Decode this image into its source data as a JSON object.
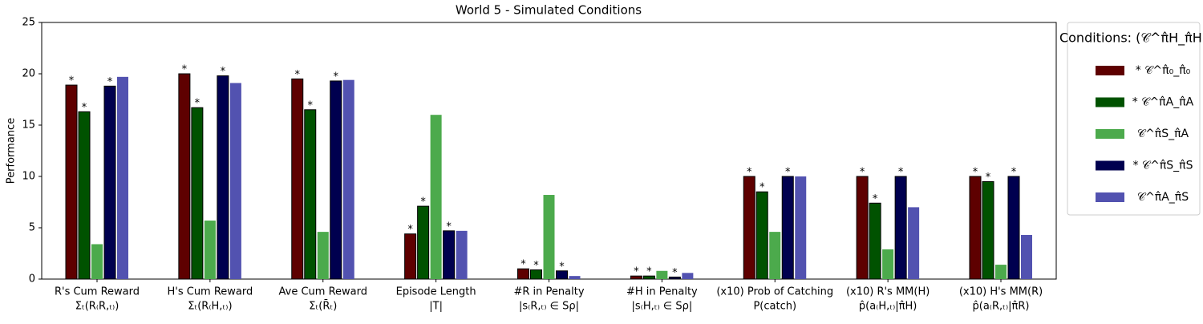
{
  "chart_data": {
    "type": "bar",
    "title": "World 5 - Simulated Conditions",
    "ylabel": "Performance",
    "categories": [
      "R's Cum Reward",
      "H's Cum Reward",
      "Ave Cum Reward",
      "Episode Length",
      "#R in Penalty",
      "#H in Penalty",
      "(x10) Prob of Catching",
      "(x10) R's MM(H)",
      "(x10) H's MM(R)"
    ],
    "category_formulas": [
      "Σₜ(R₍R,ₜ₎)",
      "Σₜ(R₍H,ₜ₎)",
      "Σₜ(R̄ₜ)",
      "|T|",
      "|s₍R,ₜ₎ ∈ Sρ|",
      "|s₍H,ₜ₎ ∈ Sρ|",
      "P(catch)",
      "p̂(a₍H,ₜ₎|π̂H)",
      "p̂(a₍R,ₜ₎|π̂R)"
    ],
    "series": [
      {
        "name": "* 𝒞^π̂₀_π̂₀",
        "star": "*",
        "color": "#5e0000",
        "values": [
          18.9,
          20.0,
          19.5,
          4.4,
          1.0,
          0.3,
          10.0,
          10.0,
          10.0
        ]
      },
      {
        "name": "* 𝒞^π̂A_π̂A",
        "star": "*",
        "color": "#005200",
        "values": [
          16.3,
          16.7,
          16.5,
          7.1,
          0.9,
          0.3,
          8.5,
          7.4,
          9.5
        ]
      },
      {
        "name": "𝒞^π̂S_π̂A",
        "color": "#4caa4c",
        "values": [
          3.4,
          5.7,
          4.6,
          16.0,
          8.2,
          0.8,
          4.6,
          2.9,
          1.4
        ]
      },
      {
        "name": "* 𝒞^π̂S_π̂S",
        "star": "*",
        "color": "#00004f",
        "values": [
          18.8,
          19.8,
          19.3,
          4.7,
          0.8,
          0.2,
          10.0,
          10.0,
          10.0
        ]
      },
      {
        "name": "𝒞^π̂A_π̂S",
        "color": "#5252b0",
        "values": [
          19.7,
          19.1,
          19.4,
          4.7,
          0.3,
          0.6,
          10.0,
          7.0,
          4.3
        ]
      }
    ],
    "legend_title": "Conditions: (𝒞^π̂H_π̂H)",
    "legend": "outside right",
    "ylim": [
      0,
      25
    ],
    "yticks": [
      0,
      5,
      10,
      15,
      20,
      25
    ],
    "grid": false
  }
}
